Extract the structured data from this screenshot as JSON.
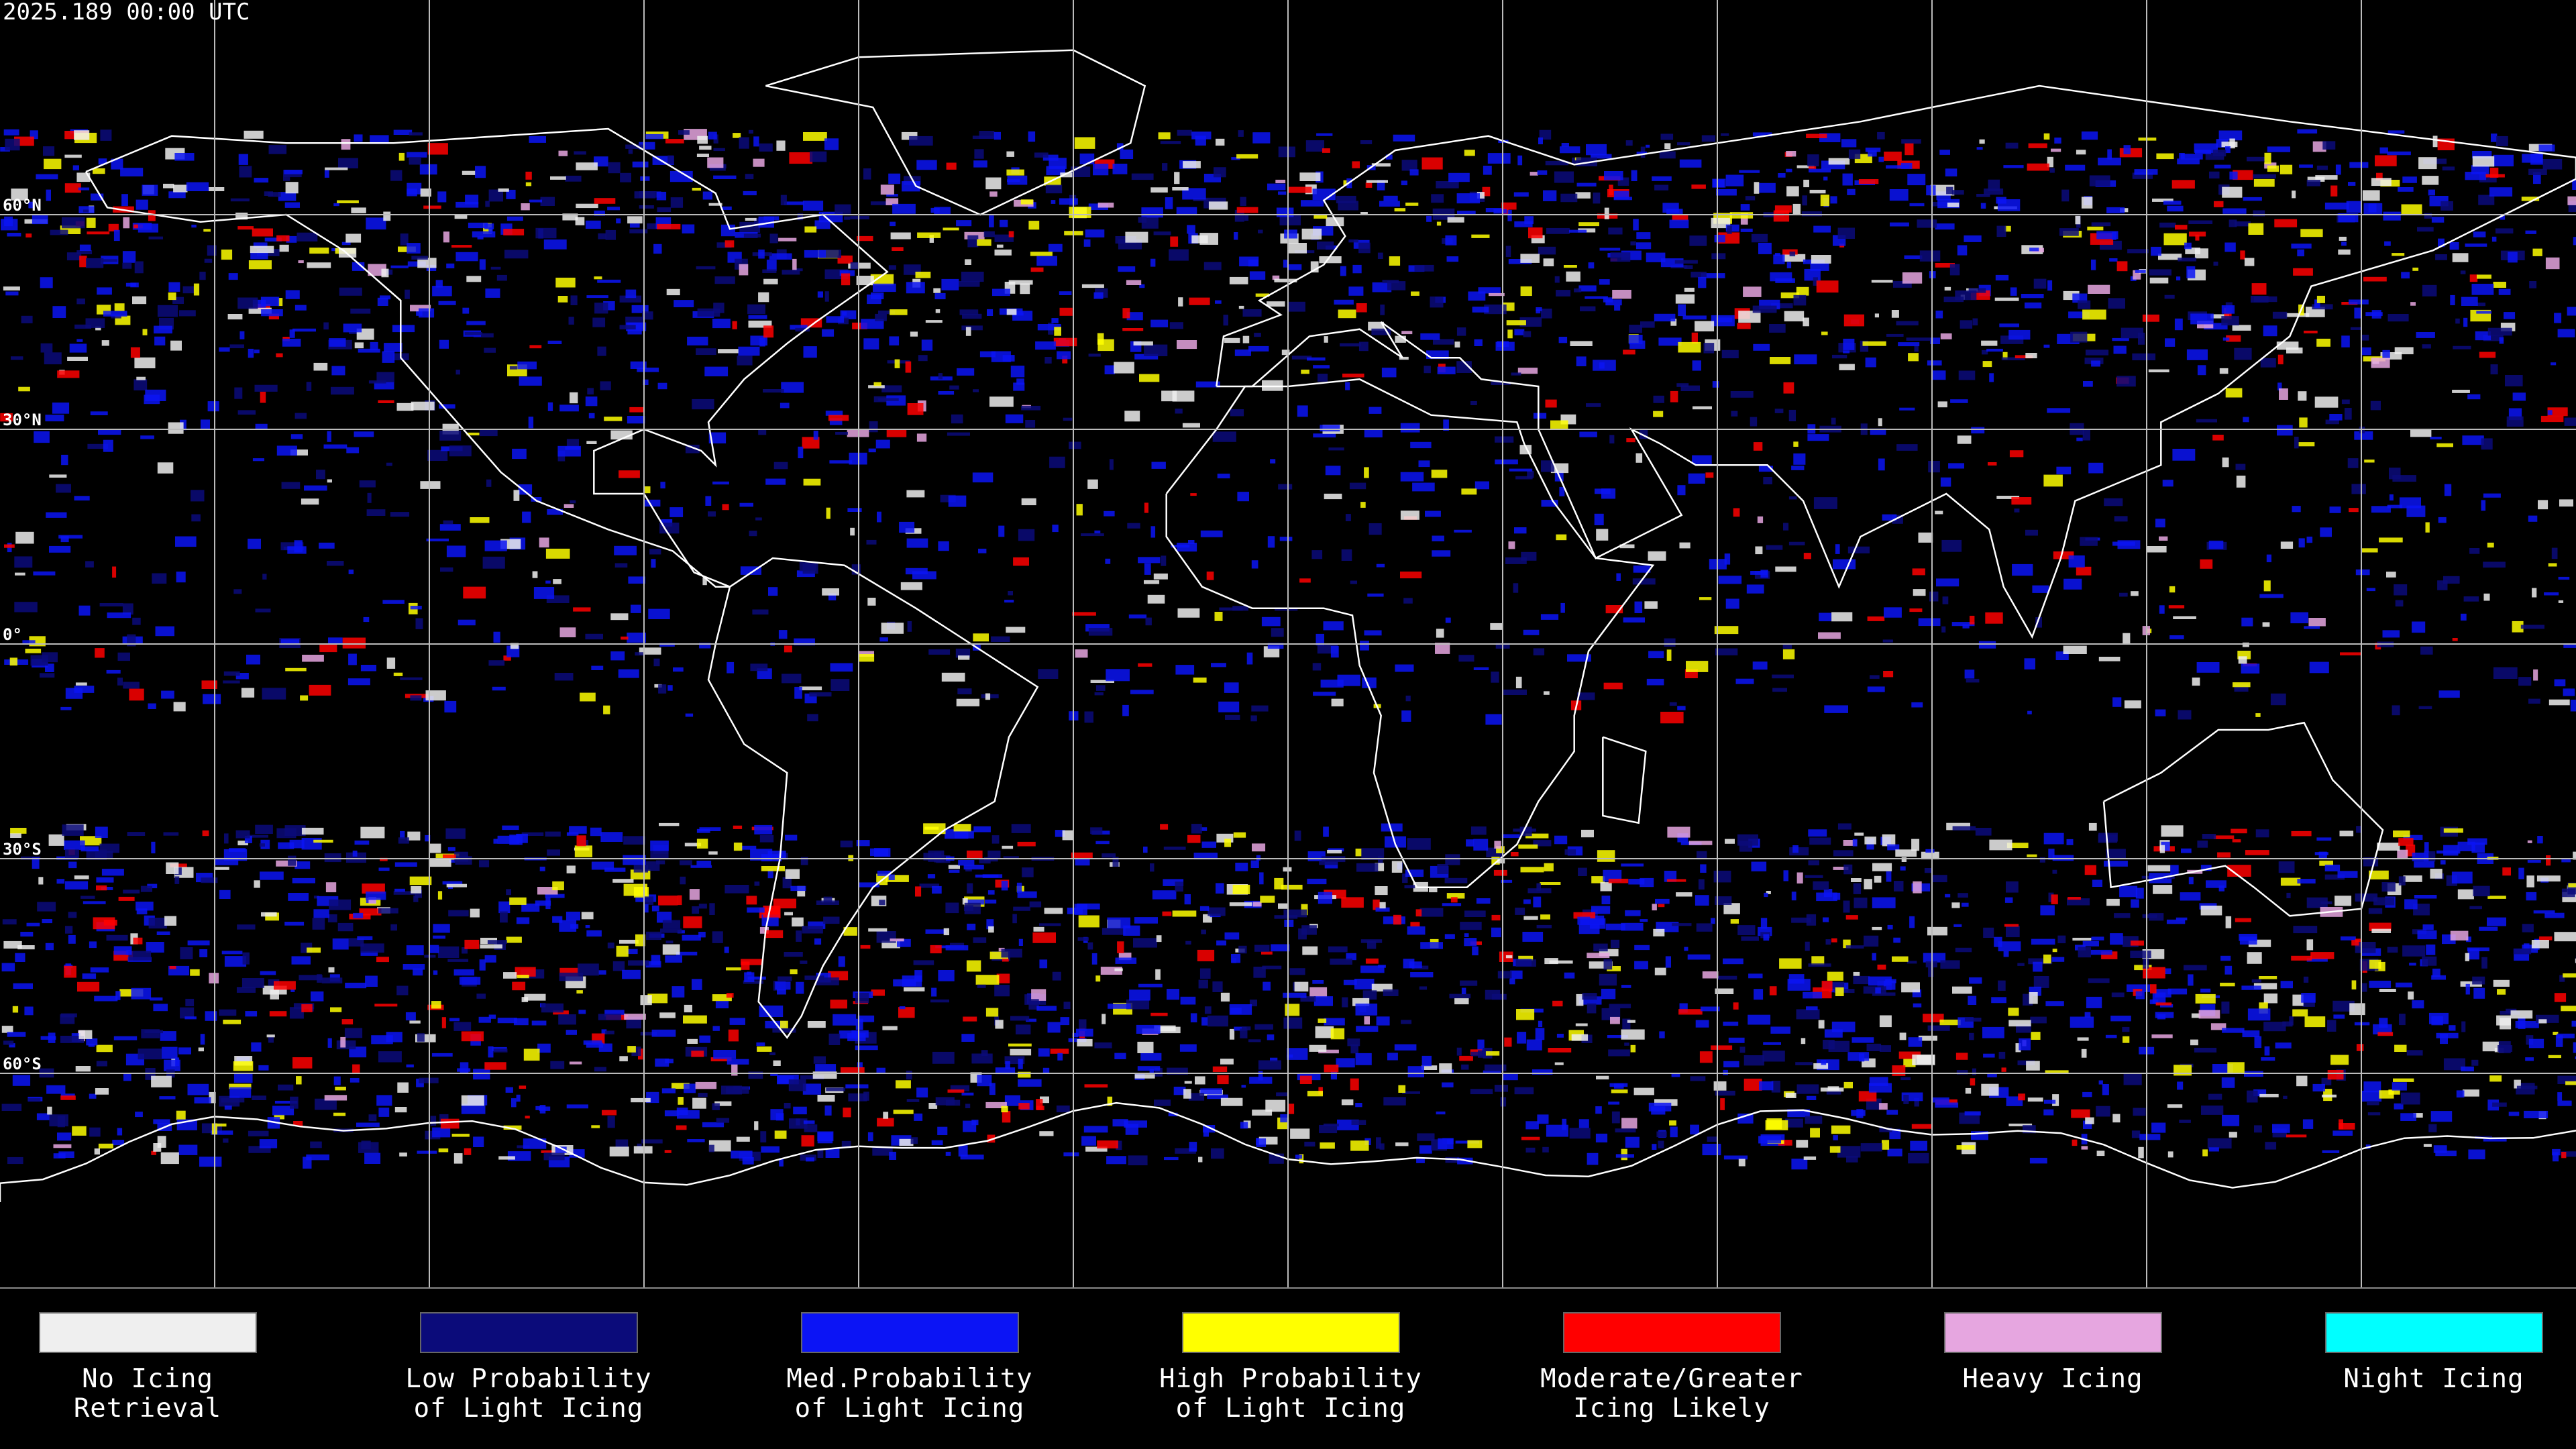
{
  "header": {
    "title": "2025.189 00:00 UTC"
  },
  "map": {
    "latitude_labels": [
      "60°N",
      "30°N",
      "0°",
      "30°S",
      "60°S"
    ]
  },
  "legend": [
    {
      "label": [
        "No Icing",
        "Retrieval"
      ],
      "color": "#efefef"
    },
    {
      "label": [
        "Low Probability",
        "of Light Icing"
      ],
      "color": "#0b0b7a"
    },
    {
      "label": [
        "Med.Probability",
        "of Light Icing"
      ],
      "color": "#0b14f5"
    },
    {
      "label": [
        "High Probability",
        "of Light Icing"
      ],
      "color": "#ffff00"
    },
    {
      "label": [
        "Moderate/Greater",
        "Icing Likely"
      ],
      "color": "#ff0000"
    },
    {
      "label": [
        "Heavy Icing"
      ],
      "color": "#e6a6e0"
    },
    {
      "label": [
        "Night Icing"
      ],
      "color": "#00ffff"
    }
  ]
}
